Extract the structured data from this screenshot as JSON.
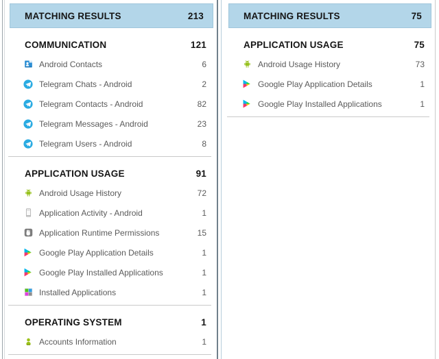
{
  "colors": {
    "header_bg": "#b3d6e9",
    "header_border": "#9fc6db",
    "section_text": "#151515",
    "item_text": "#5a5a5a",
    "separator": "#c9c9c9",
    "pane_divider": "#70808b",
    "telegram_blue": "#2aabe2",
    "android_green": "#97c11e",
    "contacts_blue": "#2d8fd5",
    "permissions_gray": "#7d7d7d",
    "play_cyan": "#00b6ea",
    "play_green": "#00d45f",
    "play_yellow": "#ffc50a",
    "play_red": "#f3396d",
    "accounts_green": "#9cc21c"
  },
  "panels": [
    {
      "header": {
        "label": "MATCHING RESULTS",
        "count": "213"
      },
      "sections": [
        {
          "label": "COMMUNICATION",
          "count": "121",
          "items": [
            {
              "icon": "android-contacts-icon",
              "label": "Android Contacts",
              "count": "6"
            },
            {
              "icon": "telegram-icon",
              "label": "Telegram Chats - Android",
              "count": "2"
            },
            {
              "icon": "telegram-icon",
              "label": "Telegram Contacts - Android",
              "count": "82"
            },
            {
              "icon": "telegram-icon",
              "label": "Telegram Messages - Android",
              "count": "23"
            },
            {
              "icon": "telegram-icon",
              "label": "Telegram Users - Android",
              "count": "8"
            }
          ]
        },
        {
          "label": "APPLICATION USAGE",
          "count": "91",
          "items": [
            {
              "icon": "android-robot-icon",
              "label": "Android Usage History",
              "count": "72"
            },
            {
              "icon": "application-activity-icon",
              "label": "Application Activity - Android",
              "count": "1"
            },
            {
              "icon": "runtime-permissions-icon",
              "label": "Application Runtime Permissions",
              "count": "15"
            },
            {
              "icon": "google-play-icon",
              "label": "Google Play Application Details",
              "count": "1"
            },
            {
              "icon": "google-play-icon",
              "label": "Google Play Installed Applications",
              "count": "1"
            },
            {
              "icon": "installed-apps-icon",
              "label": "Installed Applications",
              "count": "1"
            }
          ]
        },
        {
          "label": "OPERATING SYSTEM",
          "count": "1",
          "items": [
            {
              "icon": "accounts-icon",
              "label": "Accounts Information",
              "count": "1"
            }
          ]
        }
      ]
    },
    {
      "header": {
        "label": "MATCHING RESULTS",
        "count": "75"
      },
      "sections": [
        {
          "label": "APPLICATION USAGE",
          "count": "75",
          "items": [
            {
              "icon": "android-robot-icon",
              "label": "Android Usage History",
              "count": "73"
            },
            {
              "icon": "google-play-icon",
              "label": "Google Play Application Details",
              "count": "1"
            },
            {
              "icon": "google-play-icon",
              "label": "Google Play Installed Applications",
              "count": "1"
            }
          ]
        }
      ]
    }
  ]
}
